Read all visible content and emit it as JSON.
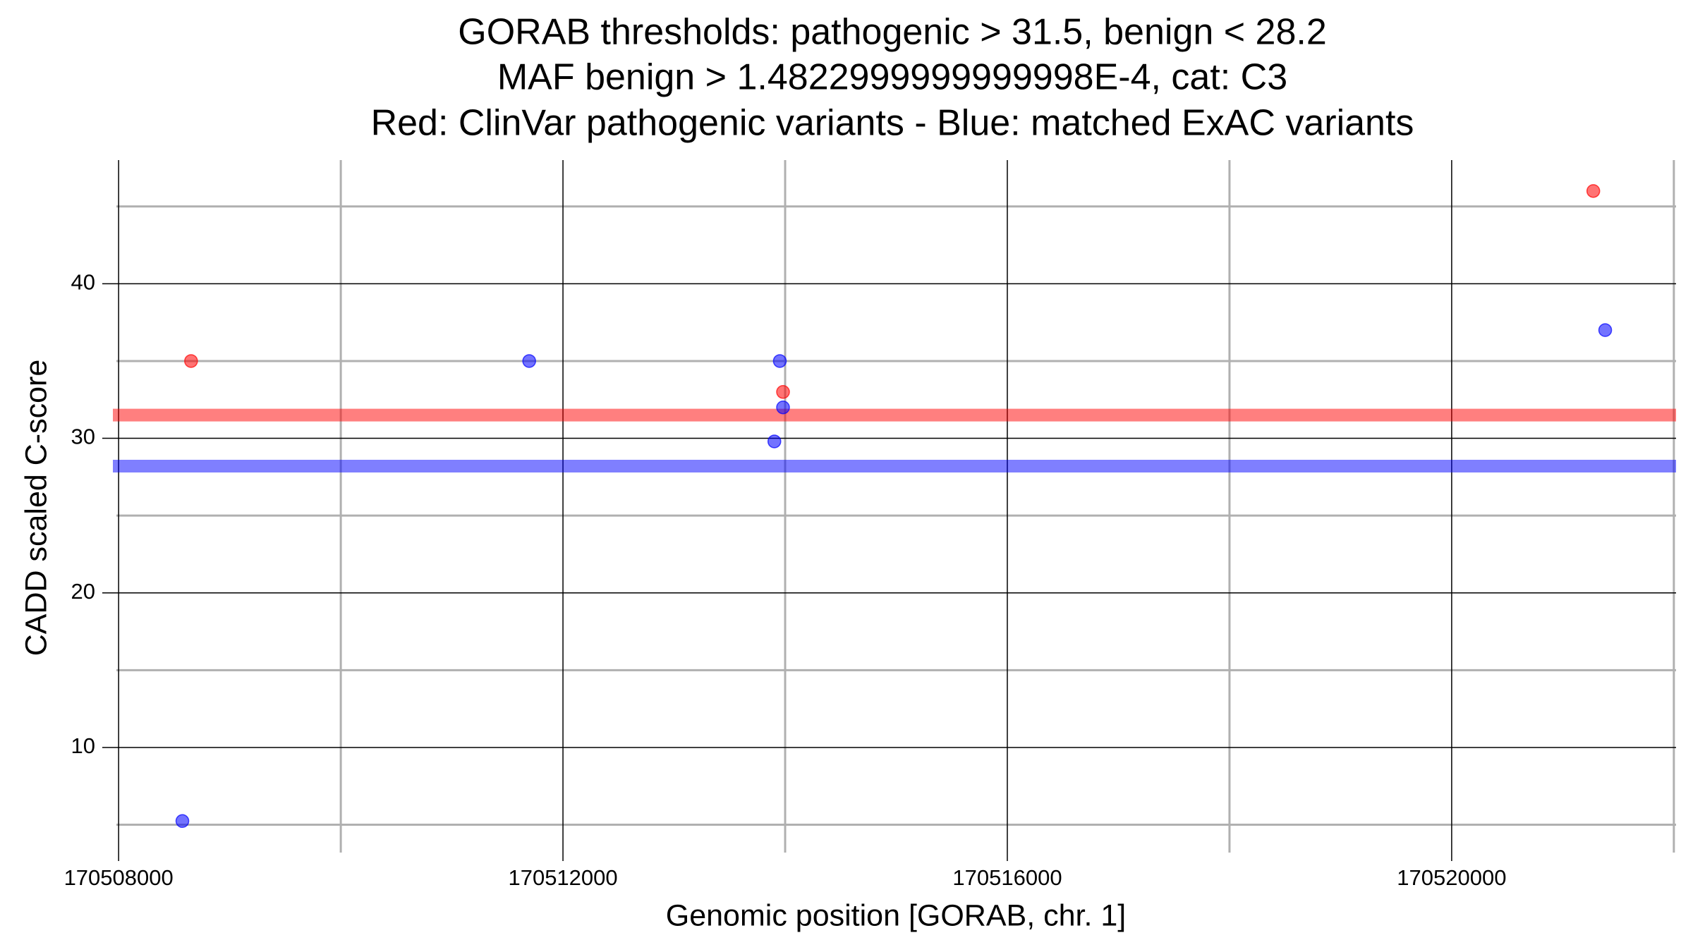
{
  "chart_data": {
    "type": "scatter",
    "title": [
      "GORAB thresholds: pathogenic > 31.5, benign < 28.2",
      "MAF benign > 1.4822999999999998E-4, cat: C3",
      "Red: ClinVar pathogenic variants - Blue: matched ExAC variants"
    ],
    "x_label": "Genomic position [GORAB, chr. 1]",
    "y_label": "CADD scaled C-score",
    "xlim": [
      170507980,
      170522020
    ],
    "ylim": [
      3.2,
      48
    ],
    "xticks": [
      170508000,
      170512000,
      170516000,
      170520000
    ],
    "xticks_minor": [
      170510000,
      170514000,
      170518000,
      170522000
    ],
    "yticks": [
      10,
      20,
      30,
      40
    ],
    "yticks_minor": [
      5,
      15,
      25,
      35,
      45
    ],
    "grid": true,
    "hlines": [
      {
        "value": 31.5,
        "color": "#ff0000"
      },
      {
        "value": 28.2,
        "color": "#0000ff"
      }
    ],
    "series": [
      {
        "color": "#ff0000",
        "x": [
          170508652,
          170513981,
          170521275
        ],
        "values": [
          35,
          33,
          46
        ]
      },
      {
        "color": "#0000ff",
        "x": [
          170508574,
          170511696,
          170513952,
          170513981,
          170513903,
          170521382
        ],
        "values": [
          5.24,
          35,
          35,
          32,
          29.8,
          37
        ]
      }
    ]
  }
}
